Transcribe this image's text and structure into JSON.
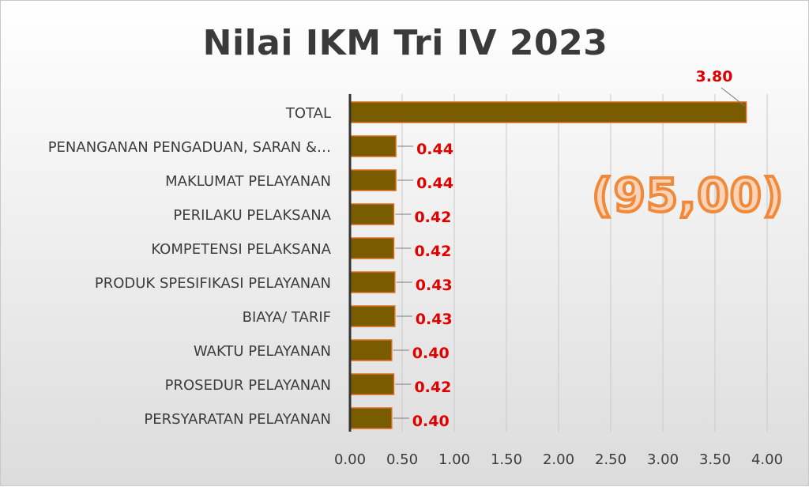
{
  "chart_data": {
    "type": "bar",
    "orientation": "horizontal",
    "title": "Nilai IKM Tri IV 2023",
    "categories": [
      "TOTAL",
      "PENANGANAN PENGADUAN, SARAN &…",
      "MAKLUMAT PELAYANAN",
      "PERILAKU PELAKSANA",
      "KOMPETENSI PELAKSANA",
      "PRODUK SPESIFIKASI PELAYANAN",
      "BIAYA/ TARIF",
      "WAKTU PELAYANAN",
      "PROSEDUR PELAYANAN",
      "PERSYARATAN PELAYANAN"
    ],
    "values": [
      3.8,
      0.44,
      0.44,
      0.42,
      0.42,
      0.43,
      0.43,
      0.4,
      0.42,
      0.4
    ],
    "data_labels": [
      "3.80",
      "0.44",
      "0.44",
      "0.42",
      "0.42",
      "0.43",
      "0.43",
      "0.40",
      "0.42",
      "0.40"
    ],
    "x_ticks": [
      "0.00",
      "0.50",
      "1.00",
      "1.50",
      "2.00",
      "2.50",
      "3.00",
      "3.50",
      "4.00"
    ],
    "xlim": [
      0,
      4
    ],
    "xlabel": "",
    "ylabel": "",
    "grid": "vertical",
    "legend": "none",
    "annotation": "(95,00)",
    "colors": {
      "bar_fill": "#7a5c00",
      "bar_stroke": "#e06a1a",
      "data_label": "#e00000",
      "annotation_fill": "#fbd3b8",
      "annotation_stroke": "#f08a3a",
      "grid": "#c9c9c9",
      "axis": "#333333"
    }
  }
}
